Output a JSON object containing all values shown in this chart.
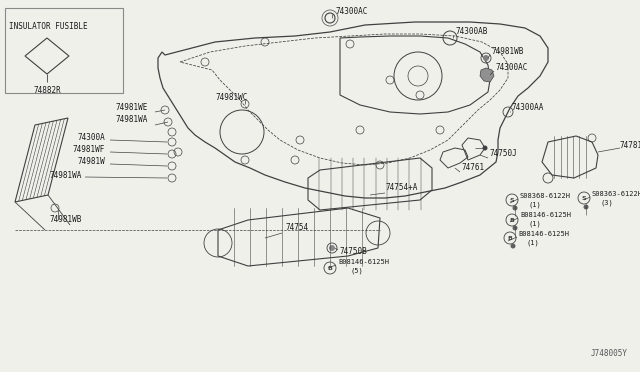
{
  "bg_color": "#f0f0eb",
  "line_color": "#404040",
  "text_color": "#1a1a1a",
  "diagram_code": "J748005Y",
  "inset_label": "INSULATOR FUSIBLE",
  "inset_part": "74882R",
  "figsize": [
    6.4,
    3.72
  ],
  "dpi": 100
}
